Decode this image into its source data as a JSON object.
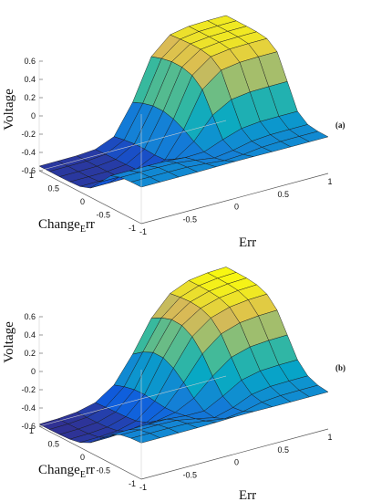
{
  "chart_data": [
    {
      "type": "surface",
      "panel_label": "(a)",
      "zlabel": "Voltage",
      "xlabel": "Err",
      "ylabel": "Change",
      "ylabel_sub": "E",
      "ylabel_tail": "rr",
      "x_ticks": [
        "-1",
        "-0.5",
        "0",
        "0.5",
        "1"
      ],
      "y_ticks": [
        "-1",
        "-0.5",
        "0",
        "0.5",
        "1"
      ],
      "z_ticks": [
        "-0.6",
        "-0.4",
        "-0.2",
        "0",
        "0.2",
        "0.4",
        "0.6"
      ],
      "xlim": [
        -1,
        1
      ],
      "ylim": [
        -1,
        1
      ],
      "zlim": [
        -0.6,
        0.6
      ],
      "grid": [
        11,
        11
      ],
      "colormap": "parula",
      "min_value": -0.55,
      "max_value": 0.55,
      "plateau_value": -0.2,
      "step_position": 0.05,
      "step_sharpness": 9,
      "bump_amplitude": 0.08
    },
    {
      "type": "surface",
      "panel_label": "(b)",
      "zlabel": "Voltage",
      "xlabel": "Err",
      "ylabel": "Change",
      "ylabel_sub": "E",
      "ylabel_tail": "rr",
      "x_ticks": [
        "-1",
        "-0.5",
        "0",
        "0.5",
        "1"
      ],
      "y_ticks": [
        "-1",
        "-0.5",
        "0",
        "0.5",
        "1"
      ],
      "z_ticks": [
        "-0.6",
        "-0.4",
        "-0.2",
        "0",
        "0.2",
        "0.4",
        "0.6"
      ],
      "xlim": [
        -1,
        1
      ],
      "ylim": [
        -1,
        1
      ],
      "zlim": [
        -0.6,
        0.6
      ],
      "grid": [
        11,
        11
      ],
      "colormap": "parula",
      "min_value": -0.58,
      "max_value": 0.6,
      "plateau_value": -0.2,
      "step_position": 0.05,
      "step_sharpness": 6,
      "bump_amplitude": 0.14
    }
  ]
}
